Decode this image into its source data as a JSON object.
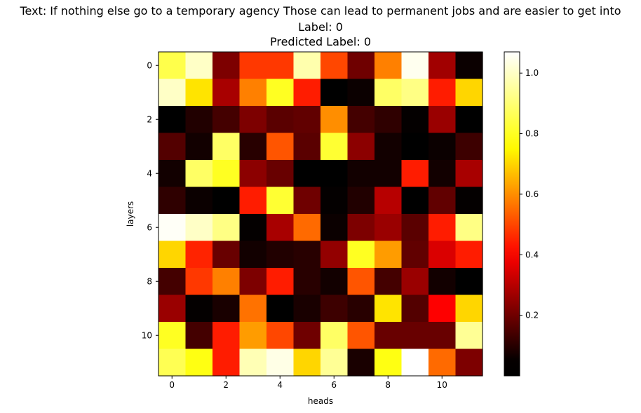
{
  "chart_data": {
    "type": "heatmap",
    "title_lines": [
      "Text: If nothing else go to a temporary agency Those can lead to permanent jobs and are easier to get into",
      "Label: 0",
      "Predicted Label: 0"
    ],
    "xlabel": "heads",
    "ylabel": "layers",
    "x_ticks": [
      0,
      2,
      4,
      6,
      8,
      10
    ],
    "y_ticks": [
      0,
      2,
      4,
      6,
      8,
      10
    ],
    "colormap": "hot",
    "vmin": 0.0,
    "vmax": 1.07,
    "colorbar_ticks": [
      0.2,
      0.4,
      0.6,
      0.8,
      1.0
    ],
    "matrix": [
      [
        0.85,
        1.0,
        0.22,
        0.48,
        0.48,
        0.97,
        0.5,
        0.2,
        0.58,
        1.05,
        0.27,
        0.06
      ],
      [
        1.0,
        0.72,
        0.28,
        0.58,
        0.8,
        0.44,
        0.02,
        0.06,
        0.88,
        0.92,
        0.44,
        0.7
      ],
      [
        0.03,
        0.09,
        0.14,
        0.22,
        0.17,
        0.18,
        0.6,
        0.14,
        0.11,
        0.05,
        0.26,
        0.04
      ],
      [
        0.16,
        0.07,
        0.88,
        0.1,
        0.52,
        0.17,
        0.82,
        0.24,
        0.07,
        0.04,
        0.06,
        0.13
      ],
      [
        0.07,
        0.88,
        0.8,
        0.24,
        0.19,
        0.02,
        0.03,
        0.07,
        0.07,
        0.44,
        0.07,
        0.28
      ],
      [
        0.11,
        0.06,
        0.04,
        0.44,
        0.82,
        0.2,
        0.05,
        0.09,
        0.3,
        0.03,
        0.18,
        0.05
      ],
      [
        1.06,
        1.0,
        0.92,
        0.05,
        0.28,
        0.55,
        0.06,
        0.22,
        0.26,
        0.17,
        0.44,
        0.92
      ],
      [
        0.7,
        0.45,
        0.19,
        0.07,
        0.09,
        0.1,
        0.25,
        0.8,
        0.62,
        0.18,
        0.35,
        0.44
      ],
      [
        0.14,
        0.48,
        0.58,
        0.22,
        0.44,
        0.1,
        0.07,
        0.52,
        0.14,
        0.26,
        0.07,
        0.04
      ],
      [
        0.26,
        0.05,
        0.08,
        0.56,
        0.01,
        0.08,
        0.13,
        0.1,
        0.72,
        0.16,
        0.4,
        0.7
      ],
      [
        0.8,
        0.14,
        0.44,
        0.62,
        0.5,
        0.2,
        0.88,
        0.52,
        0.19,
        0.19,
        0.19,
        0.94
      ],
      [
        0.86,
        0.78,
        0.44,
        0.98,
        1.04,
        0.7,
        0.94,
        0.08,
        0.78,
        1.07,
        0.55,
        0.22
      ]
    ]
  }
}
